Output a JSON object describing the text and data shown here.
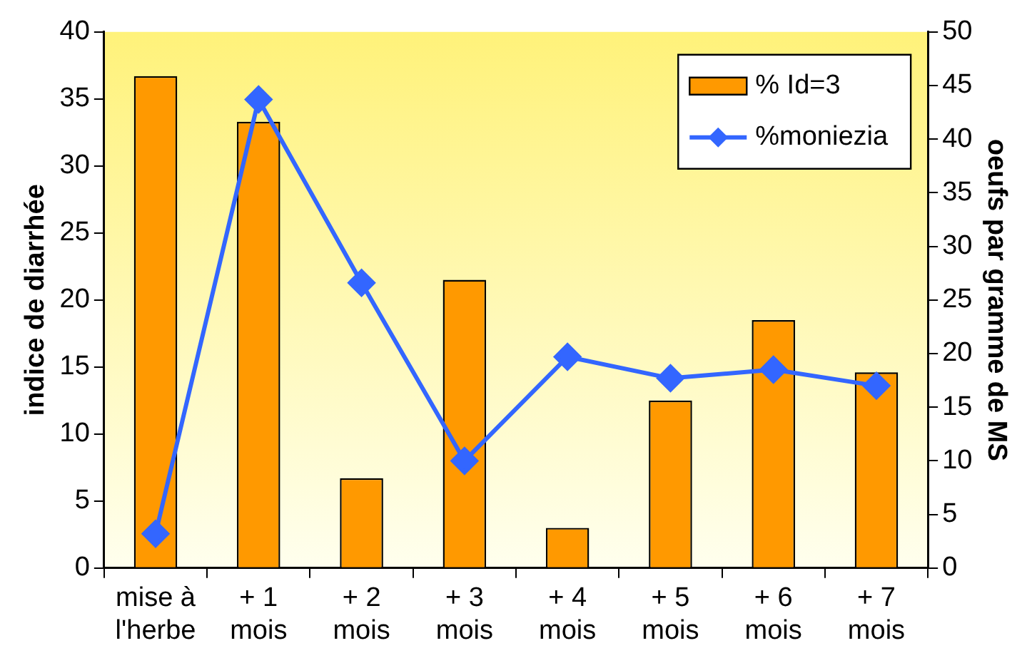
{
  "chart_data": {
    "type": "bar",
    "ylabel": "indice de diarrhée",
    "y2label": "oeufs par gramme de MS",
    "categories": [
      "mise à\nl'herbe",
      "+ 1\nmois",
      "+ 2\nmois",
      "+ 3\nmois",
      "+ 4\nmois",
      "+ 5\nmois",
      "+ 6\nmois",
      "+ 7\nmois"
    ],
    "series": [
      {
        "name": "% Id=3",
        "color": "#ff9900",
        "values": [
          36.7,
          33.3,
          6.7,
          21.5,
          3.0,
          12.5,
          18.5,
          14.6
        ]
      },
      {
        "name": "%moniezia",
        "type": "line",
        "axis": "y2",
        "color": "#3366ff",
        "marker": "diamond",
        "values": [
          3.2,
          43.7,
          26.6,
          10.0,
          19.7,
          17.7,
          18.5,
          17.0
        ]
      }
    ],
    "ylim": [
      0,
      40
    ],
    "yticks": [
      0,
      5,
      10,
      15,
      20,
      25,
      30,
      35,
      40
    ],
    "y2lim": [
      0,
      50
    ],
    "y2ticks": [
      0,
      5,
      10,
      15,
      20,
      25,
      30,
      35,
      40,
      45,
      50
    ],
    "grid": false,
    "legend": "top right"
  }
}
